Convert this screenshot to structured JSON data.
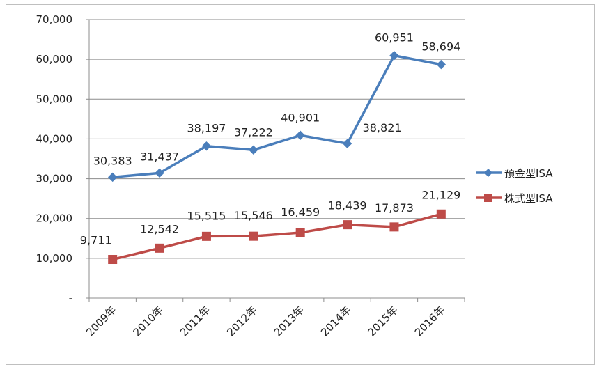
{
  "chart_data": {
    "type": "line",
    "categories": [
      "2009年",
      "2010年",
      "2011年",
      "2012年",
      "2013年",
      "2014年",
      "2015年",
      "2016年"
    ],
    "y_tick_labels": [
      "-",
      "10,000",
      "20,000",
      "30,000",
      "40,000",
      "50,000",
      "60,000",
      "70,000"
    ],
    "ylim": [
      0,
      70000
    ],
    "grid": true,
    "legend_position": "right",
    "series": [
      {
        "name": "預金型ISA",
        "color": "#4a7ebb",
        "marker": "diamond",
        "values": [
          30383,
          31437,
          38197,
          37222,
          40901,
          38821,
          60951,
          58694
        ],
        "labels": [
          "30,383",
          "31,437",
          "38,197",
          "37,222",
          "40,901",
          "38,821",
          "60,951",
          "58,694"
        ]
      },
      {
        "name": "株式型ISA",
        "color": "#be4b48",
        "marker": "square",
        "values": [
          9711,
          12542,
          15515,
          15546,
          16459,
          18439,
          17873,
          21129
        ],
        "labels": [
          "9,711",
          "12,542",
          "15,515",
          "15,546",
          "16,459",
          "18,439",
          "17,873",
          "21,129"
        ]
      }
    ]
  }
}
